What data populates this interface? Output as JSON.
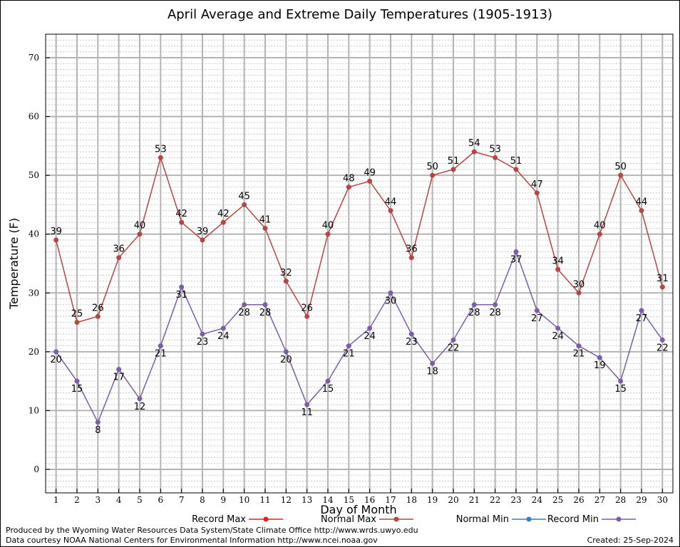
{
  "chart_data": {
    "type": "line",
    "title": "April Average and Extreme Daily Temperatures (1905-1913)",
    "xlabel": "Day of Month",
    "ylabel": "Temperature (F)",
    "x": [
      1,
      2,
      3,
      4,
      5,
      6,
      7,
      8,
      9,
      10,
      11,
      12,
      13,
      14,
      15,
      16,
      17,
      18,
      19,
      20,
      21,
      22,
      23,
      24,
      25,
      26,
      27,
      28,
      29,
      30
    ],
    "xlim": [
      0.5,
      30.5
    ],
    "ylim": [
      -4,
      74
    ],
    "yticks": [
      0,
      10,
      20,
      30,
      40,
      50,
      60,
      70
    ],
    "grid": true,
    "legend_position": "bottom",
    "series": [
      {
        "name": "Normal Max",
        "color": "#b84545",
        "values": [
          39,
          25,
          26,
          36,
          40,
          53,
          42,
          39,
          42,
          45,
          41,
          32,
          26,
          40,
          48,
          49,
          44,
          36,
          50,
          51,
          54,
          53,
          51,
          47,
          34,
          30,
          40,
          50,
          44,
          31
        ]
      },
      {
        "name": "Record Min",
        "color": "#7b5ea7",
        "values": [
          20,
          15,
          8,
          17,
          12,
          21,
          31,
          23,
          24,
          28,
          28,
          20,
          11,
          15,
          21,
          24,
          30,
          23,
          18,
          22,
          28,
          28,
          37,
          27,
          24,
          21,
          19,
          15,
          27,
          22
        ]
      }
    ],
    "legend": [
      {
        "name": "Record Max",
        "color": "#e02020"
      },
      {
        "name": "Normal Max",
        "color": "#b84545"
      },
      {
        "name": "Normal Min",
        "color": "#3a7cc0"
      },
      {
        "name": "Record Min",
        "color": "#7b5ea7"
      }
    ]
  },
  "footer": {
    "line1": "Produced by the Wyoming Water Resources Data System/State Climate Office http://www.wrds.uwyo.edu",
    "line2": "Data courtesy NOAA National Centers for Environmental Information http://www.ncei.noaa.gov",
    "created": "Created:  25-Sep-2024"
  }
}
